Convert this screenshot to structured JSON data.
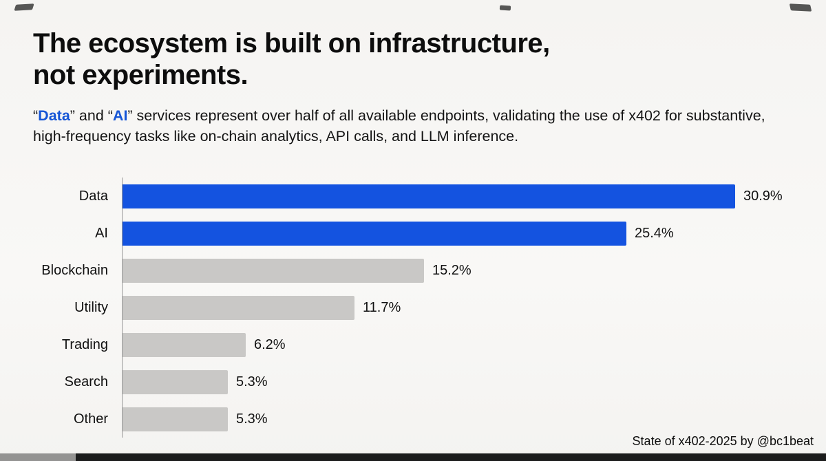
{
  "header": {
    "title_line1": "The ecosystem is built on infrastructure,",
    "title_line2": "not experiments.",
    "subtitle_segments": [
      {
        "text": "“",
        "highlight": false
      },
      {
        "text": "Data",
        "highlight": true
      },
      {
        "text": "” and “",
        "highlight": false
      },
      {
        "text": "AI",
        "highlight": true
      },
      {
        "text": "” services represent over half of all available endpoints, validating the use of x402 for substantive, high-frequency tasks like on-chain analytics, API calls, and LLM inference.",
        "highlight": false
      }
    ]
  },
  "chart_data": {
    "type": "bar",
    "orientation": "horizontal",
    "categories": [
      "Data",
      "AI",
      "Blockchain",
      "Utility",
      "Trading",
      "Search",
      "Other"
    ],
    "values": [
      30.9,
      25.4,
      15.2,
      11.7,
      6.2,
      5.3,
      5.3
    ],
    "value_labels": [
      "30.9%",
      "25.4%",
      "15.2%",
      "11.7%",
      "6.2%",
      "5.3%",
      "5.3%"
    ],
    "bar_colors": [
      "#1453e0",
      "#1453e0",
      "#c9c8c6",
      "#c9c8c6",
      "#c9c8c6",
      "#c9c8c6",
      "#c9c8c6"
    ],
    "highlight_color": "#1453e0",
    "muted_color": "#c9c8c6",
    "xlim": [
      0,
      31
    ],
    "title": "The ecosystem is built on infrastructure, not experiments.",
    "xlabel": "",
    "ylabel": "",
    "grid": false,
    "legend": "none"
  },
  "footer": {
    "credit": "State of x402-2025 by @bc1beat"
  }
}
